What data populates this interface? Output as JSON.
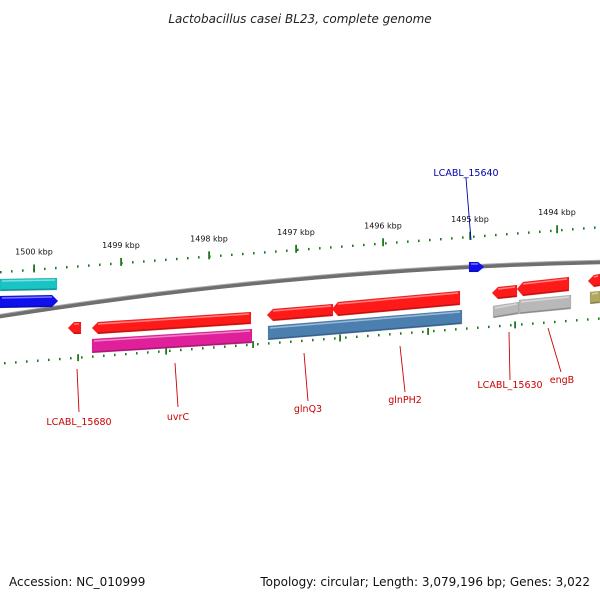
{
  "title": "Lactobacillus casei BL23, complete genome",
  "footer": {
    "accession": "Accession: NC_010999",
    "summary": "Topology: circular; Length: 3,079,196 bp; Genes: 3,022"
  },
  "scale_ticks": [
    "1500 kbp",
    "1499 kbp",
    "1498 kbp",
    "1497 kbp",
    "1496 kbp",
    "1495 kbp",
    "1494 kbp"
  ],
  "gene_labels": [
    {
      "name": "LCABL_15640",
      "color": "#0000aa"
    },
    {
      "name": "LCABL_15680",
      "color": "#cc0000"
    },
    {
      "name": "uvrC",
      "color": "#cc0000"
    },
    {
      "name": "glnQ3",
      "color": "#cc0000"
    },
    {
      "name": "glnPH2",
      "color": "#cc0000"
    },
    {
      "name": "LCABL_15630",
      "color": "#cc0000"
    },
    {
      "name": "engB",
      "color": "#cc0000"
    }
  ],
  "colors": {
    "backbone": "#7a7a7a",
    "tick": "#1e7a1e",
    "cds_red": "#ff1a1a",
    "cds_magenta": "#e0209a",
    "cds_steelblue": "#4a7fb0",
    "cds_blue": "#1010ee",
    "cds_cyan": "#19c4c4",
    "cds_gray": "#b8b8b8",
    "cds_olive": "#b0a860"
  }
}
